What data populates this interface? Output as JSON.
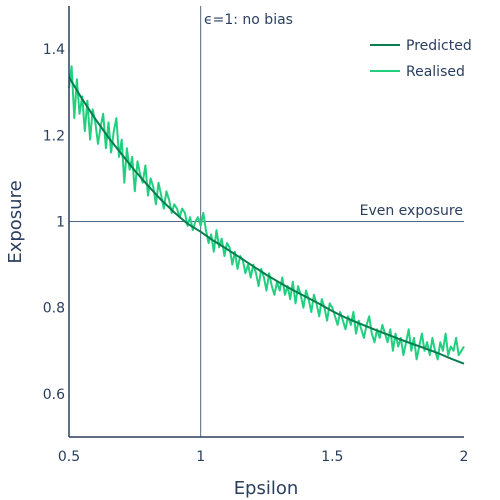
{
  "chart_data": {
    "type": "line",
    "title": "",
    "xlabel": "Epsilon",
    "ylabel": "Exposure",
    "xlim": [
      0.5,
      2.0
    ],
    "ylim": [
      0.5,
      1.5
    ],
    "x_ticks": [
      "0.5",
      "1",
      "1.5",
      "2"
    ],
    "x_tick_values": [
      0.5,
      1.0,
      1.5,
      2.0
    ],
    "y_ticks": [
      "0.6",
      "0.8",
      "1",
      "1.2",
      "1.4"
    ],
    "y_tick_values": [
      0.6,
      0.8,
      1.0,
      1.2,
      1.4
    ],
    "grid": false,
    "legend_position": "top-right",
    "series": [
      {
        "name": "Predicted",
        "color": "#0a7d50",
        "x": [
          0.5,
          0.55,
          0.6,
          0.65,
          0.7,
          0.75,
          0.8,
          0.85,
          0.9,
          0.95,
          1.0,
          1.05,
          1.1,
          1.15,
          1.2,
          1.25,
          1.3,
          1.35,
          1.4,
          1.45,
          1.5,
          1.55,
          1.6,
          1.65,
          1.7,
          1.75,
          1.8,
          1.85,
          1.9,
          1.95,
          2.0
        ],
        "y": [
          1.335,
          1.284,
          1.238,
          1.195,
          1.156,
          1.118,
          1.083,
          1.05,
          1.021,
          0.995,
          0.976,
          0.955,
          0.936,
          0.916,
          0.896,
          0.876,
          0.858,
          0.841,
          0.825,
          0.809,
          0.792,
          0.777,
          0.764,
          0.752,
          0.74,
          0.728,
          0.717,
          0.706,
          0.695,
          0.682,
          0.67
        ]
      },
      {
        "name": "Realised",
        "color": "#21d07f",
        "x": [
          0.5,
          0.51,
          0.52,
          0.53,
          0.54,
          0.55,
          0.56,
          0.57,
          0.58,
          0.59,
          0.6,
          0.61,
          0.62,
          0.63,
          0.64,
          0.65,
          0.66,
          0.67,
          0.68,
          0.69,
          0.7,
          0.71,
          0.72,
          0.73,
          0.74,
          0.75,
          0.76,
          0.77,
          0.78,
          0.79,
          0.8,
          0.81,
          0.82,
          0.83,
          0.84,
          0.85,
          0.86,
          0.87,
          0.88,
          0.89,
          0.9,
          0.91,
          0.92,
          0.93,
          0.94,
          0.95,
          0.96,
          0.97,
          0.98,
          0.99,
          1.0,
          1.01,
          1.02,
          1.03,
          1.04,
          1.05,
          1.06,
          1.07,
          1.08,
          1.09,
          1.1,
          1.11,
          1.12,
          1.13,
          1.14,
          1.15,
          1.16,
          1.17,
          1.18,
          1.19,
          1.2,
          1.21,
          1.22,
          1.23,
          1.24,
          1.25,
          1.26,
          1.27,
          1.28,
          1.29,
          1.3,
          1.31,
          1.32,
          1.33,
          1.34,
          1.35,
          1.36,
          1.37,
          1.38,
          1.39,
          1.4,
          1.41,
          1.42,
          1.43,
          1.44,
          1.45,
          1.46,
          1.47,
          1.48,
          1.49,
          1.5,
          1.51,
          1.52,
          1.53,
          1.54,
          1.55,
          1.56,
          1.57,
          1.58,
          1.59,
          1.6,
          1.61,
          1.62,
          1.63,
          1.64,
          1.65,
          1.66,
          1.67,
          1.68,
          1.69,
          1.7,
          1.71,
          1.72,
          1.73,
          1.74,
          1.75,
          1.76,
          1.77,
          1.78,
          1.79,
          1.8,
          1.81,
          1.82,
          1.83,
          1.84,
          1.85,
          1.86,
          1.87,
          1.88,
          1.89,
          1.9,
          1.91,
          1.92,
          1.93,
          1.94,
          1.95,
          1.96,
          1.97,
          1.98,
          1.99,
          2.0
        ],
        "y": [
          1.31,
          1.36,
          1.24,
          1.33,
          1.25,
          1.29,
          1.21,
          1.28,
          1.19,
          1.26,
          1.23,
          1.18,
          1.22,
          1.25,
          1.17,
          1.23,
          1.16,
          1.21,
          1.24,
          1.15,
          1.19,
          1.09,
          1.17,
          1.12,
          1.15,
          1.07,
          1.14,
          1.11,
          1.09,
          1.13,
          1.06,
          1.1,
          1.08,
          1.04,
          1.09,
          1.06,
          1.03,
          1.07,
          1.05,
          1.02,
          1.04,
          1.03,
          1.01,
          1.03,
          1.02,
          0.99,
          1.01,
          0.98,
          1.0,
          1.01,
          0.99,
          1.02,
          0.98,
          0.95,
          0.97,
          0.93,
          0.98,
          0.94,
          0.96,
          0.92,
          0.95,
          0.94,
          0.9,
          0.93,
          0.89,
          0.92,
          0.91,
          0.88,
          0.9,
          0.87,
          0.9,
          0.88,
          0.85,
          0.89,
          0.87,
          0.84,
          0.88,
          0.85,
          0.83,
          0.86,
          0.84,
          0.87,
          0.83,
          0.85,
          0.82,
          0.86,
          0.81,
          0.85,
          0.83,
          0.8,
          0.84,
          0.82,
          0.79,
          0.83,
          0.81,
          0.78,
          0.82,
          0.8,
          0.77,
          0.81,
          0.8,
          0.78,
          0.76,
          0.79,
          0.77,
          0.75,
          0.78,
          0.76,
          0.79,
          0.74,
          0.77,
          0.75,
          0.73,
          0.76,
          0.78,
          0.74,
          0.72,
          0.75,
          0.73,
          0.76,
          0.74,
          0.72,
          0.75,
          0.7,
          0.74,
          0.71,
          0.73,
          0.69,
          0.72,
          0.75,
          0.7,
          0.73,
          0.68,
          0.71,
          0.74,
          0.7,
          0.72,
          0.69,
          0.73,
          0.7,
          0.68,
          0.72,
          0.7,
          0.74,
          0.69,
          0.71,
          0.7,
          0.73,
          0.69,
          0.7,
          0.71
        ]
      }
    ],
    "reference_lines": [
      {
        "orientation": "vertical",
        "value": 1.0,
        "label": "ϵ=1: no bias",
        "color": "#506784"
      },
      {
        "orientation": "horizontal",
        "value": 1.0,
        "label": "Even exposure",
        "color": "#506784"
      }
    ]
  }
}
